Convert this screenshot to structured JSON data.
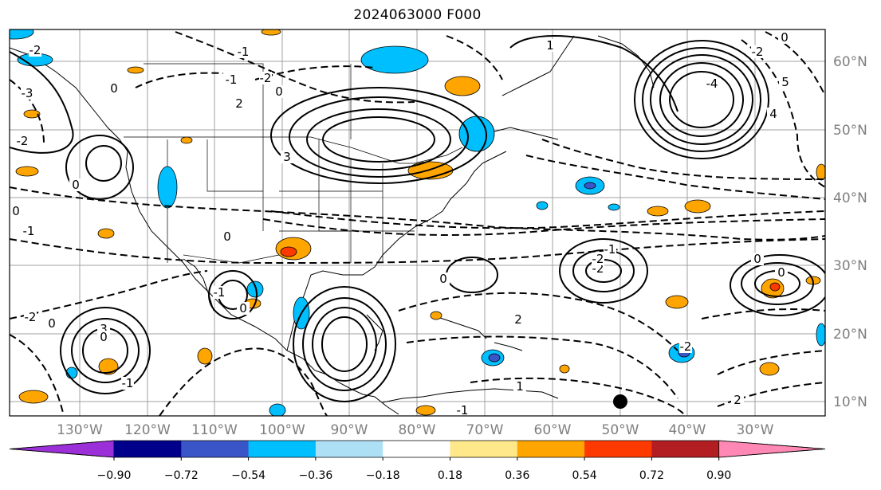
{
  "map": {
    "title": "2024063000 F000",
    "longitude_labels": [
      "130°W",
      "120°W",
      "110°W",
      "100°W",
      "90°W",
      "80°W",
      "70°W",
      "60°W",
      "50°W",
      "40°W",
      "30°W"
    ],
    "latitude_labels": [
      "60°N",
      "50°N",
      "40°N",
      "30°N",
      "20°N",
      "10°N"
    ],
    "contour_labels": [
      "-2",
      "-3",
      "-2",
      "0",
      "-3",
      "0",
      "-1",
      "-2",
      "0",
      "-1",
      "-1",
      "0",
      "3",
      "2",
      "-2",
      "-2",
      "0",
      "4",
      "5",
      "-4",
      "3",
      "-1",
      "-1",
      "0",
      "2",
      "1",
      "-1",
      "-2",
      "0",
      "0",
      "0",
      "0",
      "0",
      "1",
      "0",
      "-2",
      "2",
      "-2",
      "-1"
    ]
  },
  "colorbar": {
    "tick_labels": [
      "−0.90",
      "−0.72",
      "−0.54",
      "−0.36",
      "−0.18",
      "0.18",
      "0.36",
      "0.54",
      "0.72",
      "0.90"
    ],
    "colors": [
      "#9b30d9",
      "#00008b",
      "#3a55c8",
      "#00bfff",
      "#ade0f5",
      "#ffffff",
      "#ffe88a",
      "#ffa500",
      "#ff3a00",
      "#b21e22",
      "#ff89b4"
    ]
  },
  "legend_colors": {
    "positive_fill_light": "#ffa500",
    "positive_fill_strong": "#ff3a00",
    "negative_fill_light": "#00bfff",
    "negative_fill_strong": "#3a55c8",
    "grid": "#a0a0a0",
    "label_gray": "#7f7f7f"
  }
}
